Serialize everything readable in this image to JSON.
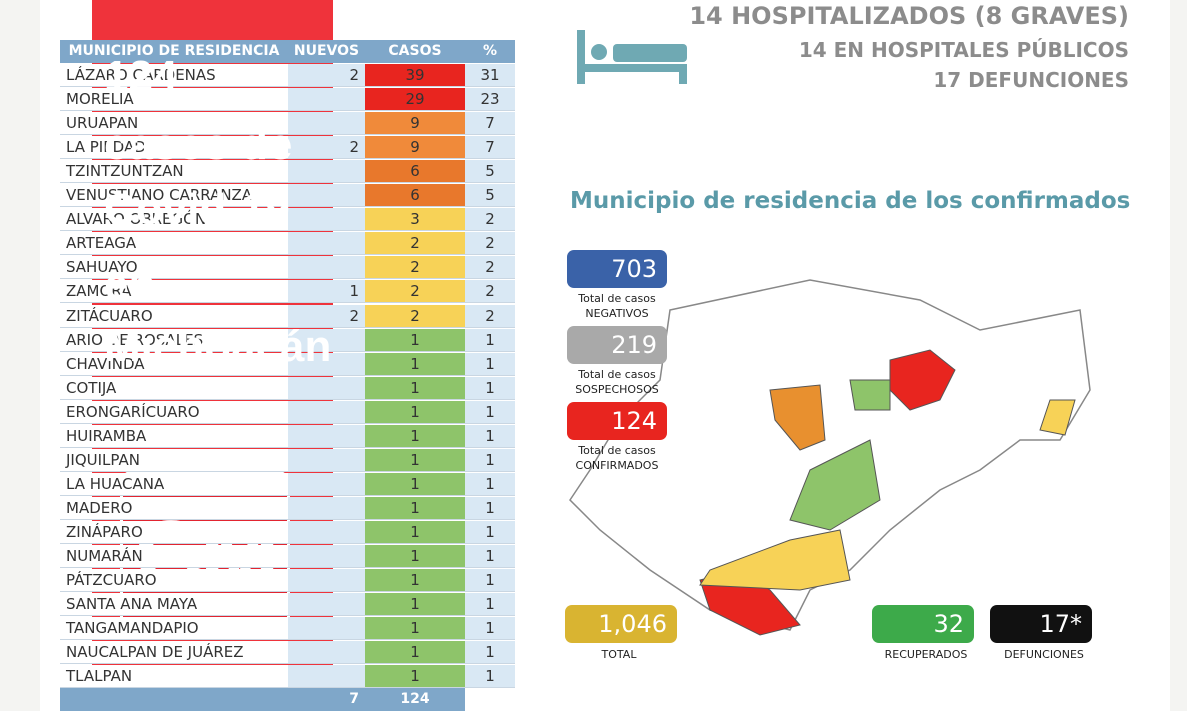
{
  "table": {
    "headers": [
      "MUNICIPIO DE RESIDENCIA",
      "NUEVOS",
      "CASOS",
      "%"
    ],
    "rows": [
      [
        "LÁZARO CÁRDENAS",
        2,
        39,
        31
      ],
      [
        "MORELIA",
        null,
        29,
        23
      ],
      [
        "URUAPAN",
        null,
        9,
        7
      ],
      [
        "LA PIEDAD",
        2,
        9,
        7
      ],
      [
        "TZINTZUNTZAN",
        null,
        6,
        5
      ],
      [
        "VENUSTIANO CARRANZA",
        null,
        6,
        5
      ],
      [
        "ALVARO OBREGÓN",
        null,
        3,
        2
      ],
      [
        "ARTEAGA",
        null,
        2,
        2
      ],
      [
        "SAHUAYO",
        null,
        2,
        2
      ],
      [
        "ZAMORA",
        1,
        2,
        2
      ],
      [
        "ZITÁCUARO",
        2,
        2,
        2
      ],
      [
        "ARIO DE ROSALES",
        null,
        1,
        1
      ],
      [
        "CHAVINDA",
        null,
        1,
        1
      ],
      [
        "COTIJA",
        null,
        1,
        1
      ],
      [
        "ERONGARÍCUARO",
        null,
        1,
        1
      ],
      [
        "HUIRAMBA",
        null,
        1,
        1
      ],
      [
        "JIQUILPAN",
        null,
        1,
        1
      ],
      [
        "LA HUACANA",
        null,
        1,
        1
      ],
      [
        "MADERO",
        null,
        1,
        1
      ],
      [
        "ZINÁPARO",
        null,
        1,
        1
      ],
      [
        "NUMARÁN",
        null,
        1,
        1
      ],
      [
        "PÁTZCUARO",
        null,
        1,
        1
      ],
      [
        "SANTA ANA MAYA",
        null,
        1,
        1
      ],
      [
        "TANGAMANDAPIO",
        null,
        1,
        1
      ],
      [
        "NAUCALPAN DE JUÁREZ",
        null,
        1,
        1
      ],
      [
        "TLALPAN",
        null,
        1,
        1
      ]
    ],
    "row_colors": [
      "#e8251f",
      "#e8251f",
      "#f08a3a",
      "#f08a3a",
      "#e8782c",
      "#e8782c",
      "#f7d257",
      "#f7d257",
      "#f7d257",
      "#f7d257",
      "#f7d257",
      "#8ec46a",
      "#8ec46a",
      "#8ec46a",
      "#8ec46a",
      "#8ec46a",
      "#8ec46a",
      "#8ec46a",
      "#8ec46a",
      "#8ec46a",
      "#8ec46a",
      "#8ec46a",
      "#8ec46a",
      "#8ec46a",
      "#8ec46a",
      "#8ec46a"
    ],
    "totals": [
      7,
      124
    ]
  },
  "header": {
    "lines": [
      "14 HOSPITALIZADOS (8 GRAVES)",
      "14 EN HOSPITALES PÚBLICOS",
      "17 DEFUNCIONES"
    ]
  },
  "map": {
    "title": "Municipio de residencia de los confirmados"
  },
  "stats": [
    {
      "value": "703",
      "label": "Total de casos",
      "sub": "NEGATIVOS",
      "color": "#3a62a8"
    },
    {
      "value": "219",
      "label": "Total de casos",
      "sub": "SOSPECHOSOS",
      "color": "#a9a9a9"
    },
    {
      "value": "124",
      "label": "Total de casos",
      "sub": "CONFIRMADOS",
      "color": "#e8251f"
    }
  ],
  "bottom_stats": [
    {
      "value": "1,046",
      "sub": "TOTAL",
      "color": "#d9b431"
    },
    {
      "value": "32",
      "sub": "RECUPERADOS",
      "color": "#3daa4a"
    },
    {
      "value": "17*",
      "sub": "DEFUNCIONES",
      "color": "#111111"
    }
  ],
  "overlay": {
    "title_lines": [
      "124",
      "casos de",
      "Covid-19",
      "en",
      "Michoacán"
    ],
    "logo": "CM"
  }
}
